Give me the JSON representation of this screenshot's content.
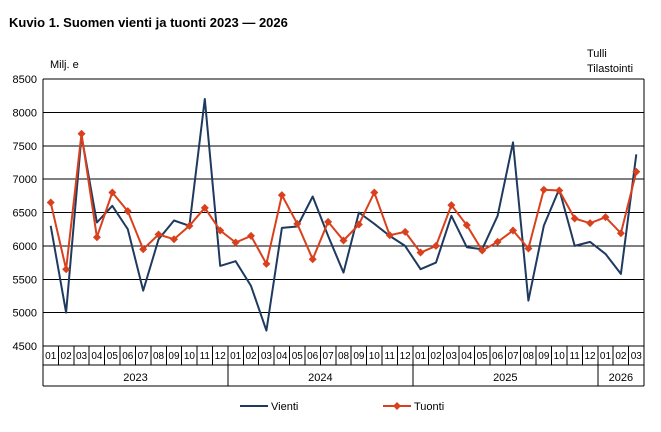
{
  "title": "Kuvio 1. Suomen vienti ja tuonti 2023 — 2026",
  "source": [
    "Tulli",
    "Tilastointi"
  ],
  "colors": {
    "vienti": "#1f3a5f",
    "tuonti": "#d9411e",
    "grid": "#000000",
    "axis": "#000000"
  },
  "chart_data": {
    "type": "line",
    "ylabel": "Milj. e",
    "ylim": [
      4500,
      8500
    ],
    "ystep": 500,
    "grid": true,
    "legend_position": "bottom",
    "categories": [
      "01",
      "02",
      "03",
      "04",
      "05",
      "06",
      "07",
      "08",
      "09",
      "10",
      "11",
      "12",
      "01",
      "02",
      "03",
      "04",
      "05",
      "06",
      "07",
      "08",
      "09",
      "10",
      "11",
      "12",
      "01",
      "02",
      "03",
      "04",
      "05",
      "06",
      "07",
      "08",
      "09",
      "10",
      "11",
      "12",
      "01",
      "02",
      "03"
    ],
    "years": [
      {
        "label": "2023",
        "start": 0,
        "count": 12
      },
      {
        "label": "2024",
        "start": 12,
        "count": 12
      },
      {
        "label": "2025",
        "start": 24,
        "count": 12
      },
      {
        "label": "2026",
        "start": 36,
        "count": 3
      }
    ],
    "series": [
      {
        "name": "Vienti",
        "marker": "none",
        "values": [
          6300,
          5000,
          7650,
          6350,
          6600,
          6250,
          5330,
          6100,
          6380,
          6300,
          8200,
          5700,
          5770,
          5400,
          4730,
          6270,
          6290,
          6740,
          6150,
          5600,
          6500,
          6330,
          6150,
          6000,
          5650,
          5750,
          6450,
          5980,
          5950,
          6450,
          7550,
          5180,
          6300,
          6850,
          6000,
          6060,
          5880,
          5580,
          7370
        ]
      },
      {
        "name": "Tuonti",
        "marker": "diamond",
        "values": [
          6650,
          5650,
          7680,
          6130,
          6800,
          6520,
          5950,
          6170,
          6100,
          6300,
          6570,
          6230,
          6050,
          6150,
          5730,
          6760,
          6330,
          5800,
          6360,
          6080,
          6320,
          6800,
          6160,
          6210,
          5900,
          6000,
          6610,
          6310,
          5930,
          6060,
          6230,
          5960,
          6840,
          6830,
          6410,
          6340,
          6430,
          6190,
          7110
        ]
      }
    ]
  }
}
